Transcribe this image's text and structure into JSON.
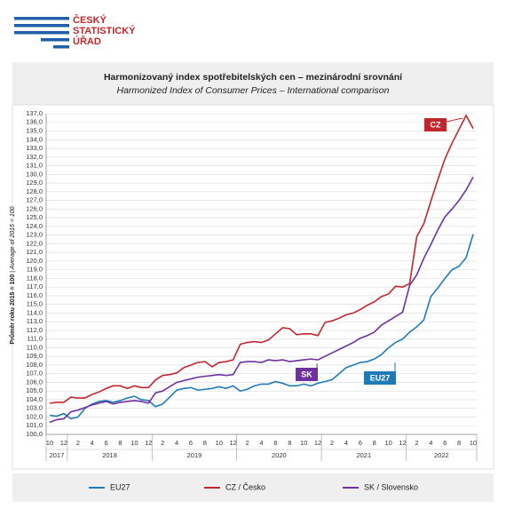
{
  "logo": [
    "ČESKÝ",
    "STATISTICKÝ",
    "ÚŘAD"
  ],
  "chart_data": {
    "type": "line",
    "title": "Harmonizovaný index spotřebitelských cen – mezinárodní srovnání",
    "subtitle": "Harmonized Index of Consumer Prices – International comparison",
    "ylabel": "Průměr roku 2015 = 100",
    "ylabel_en": "| Average of 2015 = 100",
    "categories": [
      "10",
      null,
      "12",
      null,
      "2",
      null,
      "4",
      null,
      "6",
      null,
      "8",
      null,
      "10",
      null,
      "12",
      null,
      "2",
      null,
      "4",
      null,
      "6",
      null,
      "8",
      null,
      "10",
      null,
      "12",
      null,
      "2",
      null,
      "4",
      null,
      "6",
      null,
      "8",
      null,
      "10",
      null,
      "12",
      null,
      "2",
      null,
      "4",
      null,
      "6",
      null,
      "8",
      null,
      "10",
      null,
      "12",
      null,
      "2",
      null,
      "4",
      null,
      "6",
      null,
      "8",
      null,
      "10"
    ],
    "year_groups": [
      {
        "label": "2017",
        "months": 3
      },
      {
        "label": "2018",
        "months": 12
      },
      {
        "label": "2019",
        "months": 12
      },
      {
        "label": "2020",
        "months": 12
      },
      {
        "label": "2021",
        "months": 12
      },
      {
        "label": "2022",
        "months": 10
      }
    ],
    "series": [
      {
        "name": "EU27",
        "color": "#1f7bb8",
        "values": [
          102.2,
          102.1,
          102.4,
          101.8,
          102.0,
          103.0,
          103.5,
          103.8,
          103.9,
          103.7,
          103.9,
          104.2,
          104.4,
          104.0,
          103.9,
          103.2,
          103.5,
          104.3,
          105.1,
          105.3,
          105.4,
          105.1,
          105.2,
          105.3,
          105.5,
          105.3,
          105.6,
          105.0,
          105.2,
          105.6,
          105.8,
          105.8,
          106.1,
          105.9,
          105.6,
          105.6,
          105.8,
          105.6,
          105.9,
          106.1,
          106.3,
          107.0,
          107.7,
          108.0,
          108.3,
          108.4,
          108.7,
          109.2,
          110.0,
          110.6,
          111.0,
          111.8,
          112.4,
          113.2,
          115.9,
          116.9,
          118.0,
          119.0,
          119.4,
          120.4,
          123.1
        ]
      },
      {
        "name": "CZ / Česko",
        "color": "#c0272d",
        "values": [
          103.6,
          103.7,
          103.7,
          104.3,
          104.2,
          104.2,
          104.6,
          104.9,
          105.3,
          105.6,
          105.6,
          105.3,
          105.6,
          105.4,
          105.4,
          106.3,
          106.8,
          106.9,
          107.1,
          107.7,
          108.0,
          108.3,
          108.4,
          107.8,
          108.3,
          108.4,
          108.6,
          110.4,
          110.6,
          110.7,
          110.6,
          110.9,
          111.6,
          112.3,
          112.2,
          111.5,
          111.6,
          111.6,
          111.4,
          112.9,
          113.1,
          113.4,
          113.8,
          114.0,
          114.4,
          114.9,
          115.3,
          115.9,
          116.2,
          117.1,
          117.0,
          117.4,
          122.8,
          124.3,
          126.9,
          129.4,
          131.8,
          133.6,
          135.2,
          136.8,
          135.3
        ]
      },
      {
        "name": "SK / Slovensko",
        "color": "#7030a0",
        "values": [
          101.4,
          101.7,
          101.8,
          102.6,
          102.8,
          103.1,
          103.4,
          103.6,
          103.8,
          103.5,
          103.7,
          103.8,
          103.9,
          103.8,
          103.6,
          104.8,
          105.0,
          105.5,
          106.0,
          106.2,
          106.4,
          106.6,
          106.7,
          106.8,
          106.9,
          106.8,
          106.9,
          108.3,
          108.4,
          108.4,
          108.3,
          108.6,
          108.5,
          108.6,
          108.4,
          108.5,
          108.6,
          108.7,
          108.6,
          109.0,
          109.4,
          109.8,
          110.2,
          110.6,
          111.1,
          111.4,
          111.8,
          112.6,
          113.1,
          113.6,
          114.1,
          117.2,
          118.4,
          120.3,
          121.9,
          123.6,
          125.1,
          126.0,
          127.0,
          128.2,
          129.7
        ]
      }
    ],
    "annotations": [
      "EU27",
      "CZ",
      "SK"
    ],
    "ylim": [
      100,
      137
    ],
    "yticks": [
      {
        "value": 100,
        "label": "100,0"
      },
      {
        "value": 101,
        "label": "101,0"
      },
      {
        "value": 102,
        "label": "102,0"
      },
      {
        "value": 103,
        "label": "103,0"
      },
      {
        "value": 104,
        "label": "104,0"
      },
      {
        "value": 105,
        "label": "105,0"
      },
      {
        "value": 106,
        "label": "106,0"
      },
      {
        "value": 107,
        "label": "107,0"
      },
      {
        "value": 108,
        "label": "108,0"
      },
      {
        "value": 109,
        "label": "109,0"
      },
      {
        "value": 110,
        "label": "110,0"
      },
      {
        "value": 111,
        "label": "111,0"
      },
      {
        "value": 112,
        "label": "112,0"
      },
      {
        "value": 113,
        "label": "113,0"
      },
      {
        "value": 114,
        "label": "114,0"
      },
      {
        "value": 115,
        "label": "115,0"
      },
      {
        "value": 116,
        "label": "116,0"
      },
      {
        "value": 117,
        "label": "117,0"
      },
      {
        "value": 118,
        "label": "118,0"
      },
      {
        "value": 119,
        "label": "119,0"
      },
      {
        "value": 120,
        "label": "120,0"
      },
      {
        "value": 121,
        "label": "121,0"
      },
      {
        "value": 122,
        "label": "122,0"
      },
      {
        "value": 123,
        "label": "123,0"
      },
      {
        "value": 124,
        "label": "124,0"
      },
      {
        "value": 125,
        "label": "125,0"
      },
      {
        "value": 126,
        "label": "126,0"
      },
      {
        "value": 127,
        "label": "127,0"
      },
      {
        "value": 128,
        "label": "128,0"
      },
      {
        "value": 129,
        "label": "129,0"
      },
      {
        "value": 130,
        "label": "130,0"
      },
      {
        "value": 131,
        "label": "131,0"
      },
      {
        "value": 132,
        "label": "132,0"
      },
      {
        "value": 133,
        "label": "133,0"
      },
      {
        "value": 134,
        "label": "134,0"
      },
      {
        "value": 135,
        "label": "135,0"
      },
      {
        "value": 136,
        "label": "136,0"
      },
      {
        "value": 137,
        "label": "137,0"
      }
    ],
    "grid": true,
    "legend": "bottom"
  }
}
